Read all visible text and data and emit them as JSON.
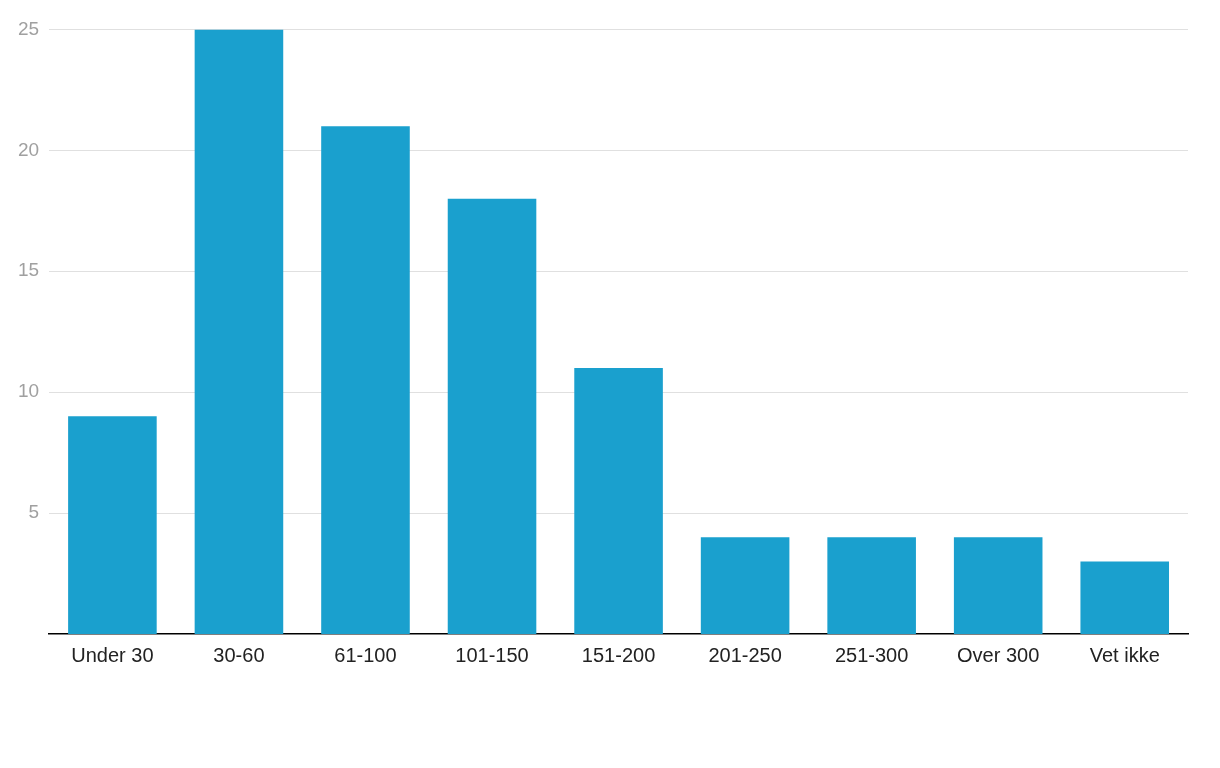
{
  "chart_data": {
    "type": "bar",
    "categories": [
      "Under 30",
      "30-60",
      "61-100",
      "101-150",
      "151-200",
      "201-250",
      "251-300",
      "Over 300",
      "Vet ikke"
    ],
    "values": [
      9,
      25,
      21,
      18,
      11,
      4,
      4,
      4,
      3
    ],
    "color": "#1aa0ce",
    "ylim": [
      0,
      25
    ],
    "yticks": [
      5,
      10,
      15,
      20,
      25
    ],
    "grid": "y"
  }
}
